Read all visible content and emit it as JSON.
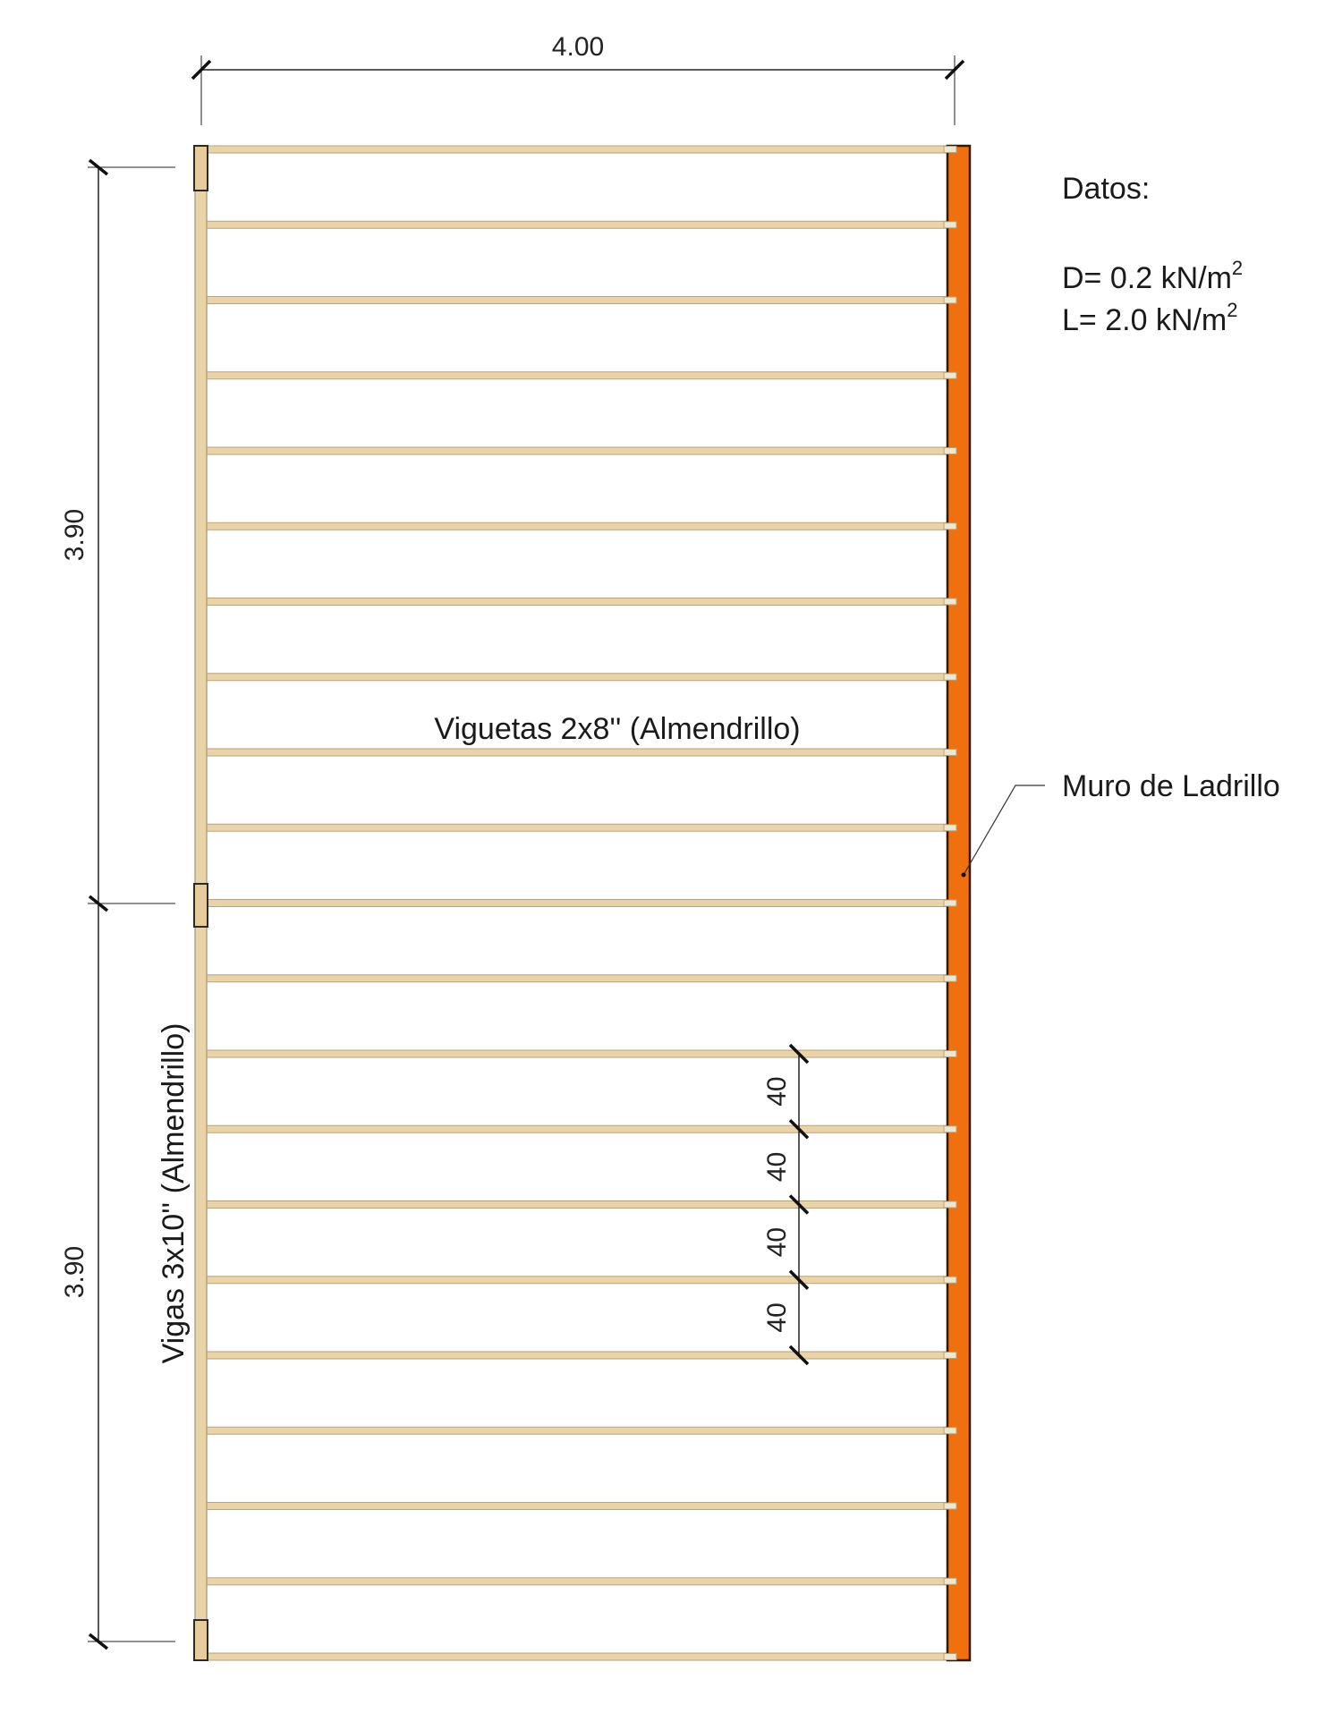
{
  "dimensions": {
    "width": "4.00",
    "span_top": "3.90",
    "span_bottom": "3.90",
    "spacing": [
      "40",
      "40",
      "40",
      "40"
    ]
  },
  "labels": {
    "joists": "Viguetas 2x8'' (Almendrillo)",
    "beams": "Vigas 3x10'' (Almendrillo)",
    "wall": "Muro de Ladrillo"
  },
  "datos": {
    "title": "Datos:",
    "dead_load_prefix": "D= 0.2 kN/m",
    "live_load_prefix": "L= 2.0 kN/m",
    "exponent": "2"
  },
  "joist_count": 21,
  "colors": {
    "wood": "#e9d3a9",
    "wood_edge": "#b9a27a",
    "wall": "#f07010",
    "wall_edge": "#2a1a0a",
    "dim_line": "#222222"
  }
}
